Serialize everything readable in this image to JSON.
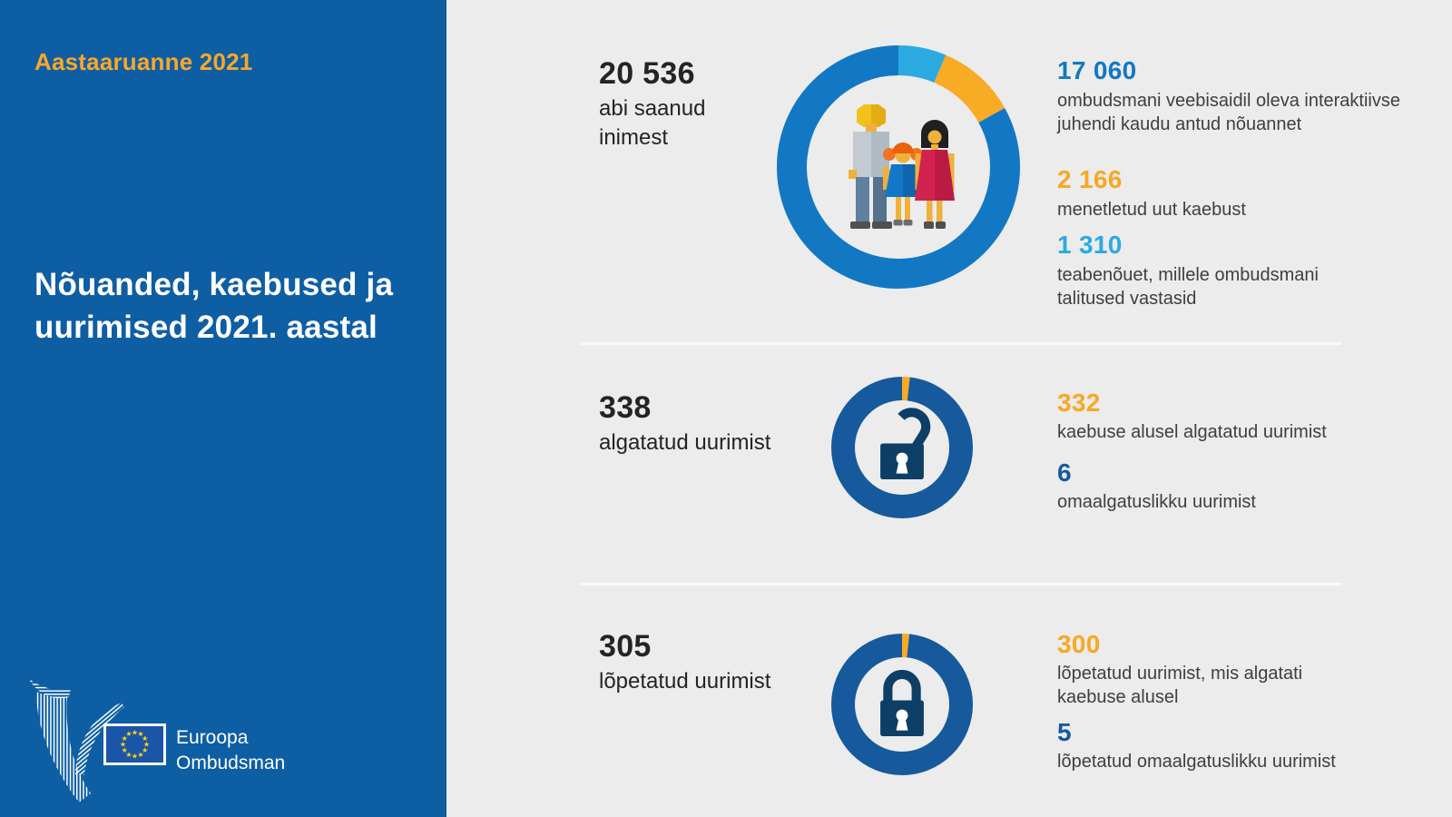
{
  "sidebar": {
    "report_label": "Aastaaruanne 2021",
    "title": "Nõuanded, kaebused ja\nuurimised 2021. aastal",
    "org_line1": "Euroopa",
    "org_line2": "Ombudsman"
  },
  "sections": [
    {
      "big_number": "20 536",
      "big_label": "abi saanud\ninimest",
      "stats": [
        {
          "value": "17 060",
          "color": "#1278C4",
          "desc": "ombudsmani veebisaidil oleva interaktiivse\njuhendi kaudu antud nõuannet"
        },
        {
          "value": "2 166",
          "color": "#F7A823",
          "desc": "menetletud uut kaebust"
        },
        {
          "value": "1 310",
          "color": "#2BAAE2",
          "desc": "teabenõuet, millele ombudsmani\ntalitused vastasid"
        }
      ]
    },
    {
      "big_number": "338",
      "big_label": "algatatud uurimist",
      "stats": [
        {
          "value": "332",
          "color": "#F7A823",
          "desc": "kaebuse alusel algatatud uurimist"
        },
        {
          "value": "6",
          "color": "#16599D",
          "desc": "omaalgatuslikku uurimist"
        }
      ]
    },
    {
      "big_number": "305",
      "big_label": "lõpetatud uurimist",
      "stats": [
        {
          "value": "300",
          "color": "#F7A823",
          "desc": "lõpetatud uurimist, mis algatati\nkaebuse alusel"
        },
        {
          "value": "5",
          "color": "#16599D",
          "desc": "lõpetatud omaalgatuslikku uurimist"
        }
      ]
    }
  ],
  "chart_data": [
    {
      "type": "pie",
      "subtype": "donut",
      "title": "20 536 abi saanud inimest",
      "total": 20536,
      "start_angle_deg": 0,
      "slices": [
        {
          "label": "teabenõuet, millele ombudsmani talitused vastasid",
          "value": 1310,
          "color": "#2BAAE2"
        },
        {
          "label": "menetletud uut kaebust",
          "value": 2166,
          "color": "#F8AB25"
        },
        {
          "label": "ombudsmani veebisaidil oleva interaktiivse juhendi kaudu antud nõuannet",
          "value": 17060,
          "color": "#1278C4"
        }
      ]
    },
    {
      "type": "pie",
      "subtype": "donut",
      "title": "338 algatatud uurimist",
      "total": 338,
      "start_angle_deg": 0,
      "slices": [
        {
          "label": "omaalgatuslikku uurimist",
          "value": 6,
          "color": "#F8AB25"
        },
        {
          "label": "kaebuse alusel algatatud uurimist",
          "value": 332,
          "color": "#16599D"
        }
      ]
    },
    {
      "type": "pie",
      "subtype": "donut",
      "title": "305 lõpetatud uurimist",
      "total": 305,
      "start_angle_deg": 0,
      "slices": [
        {
          "label": "lõpetatud omaalgatuslikku uurimist",
          "value": 5,
          "color": "#F8AB25"
        },
        {
          "label": "lõpetatud uurimist, mis algatati kaebuse alusel",
          "value": 300,
          "color": "#16599D"
        }
      ]
    }
  ],
  "colors": {
    "sidebar_blue": "#0E5EA4",
    "panel_background": "#ECECEC",
    "accent_orange": "#F7A823",
    "ring_blue": "#1278C4",
    "light_blue": "#2BAAE2",
    "lock_ring_blue": "#16599D",
    "lock_navy": "#0D3F66",
    "eu_flag_blue": "#1B55A7",
    "eu_star_yellow": "#FFD617",
    "text_dark": "#242424"
  }
}
